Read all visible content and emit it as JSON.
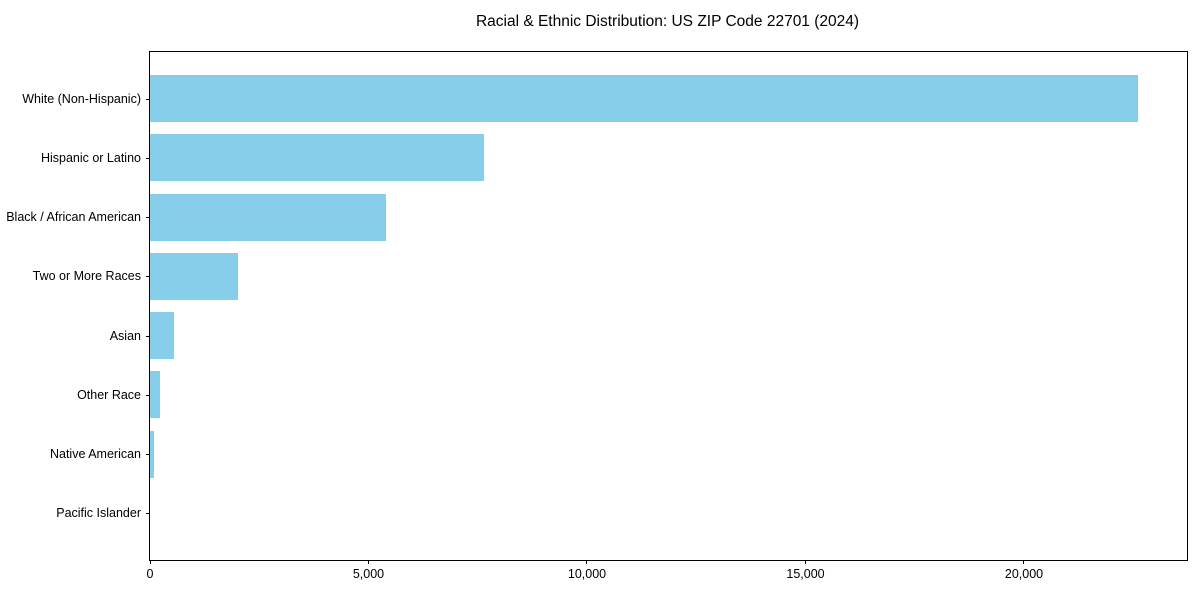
{
  "window": {
    "background": "#ffffff"
  },
  "chart_data": {
    "type": "bar",
    "orientation": "horizontal",
    "title": "Racial & Ethnic Distribution: US ZIP Code 22701 (2024)",
    "categories": [
      "White (Non-Hispanic)",
      "Hispanic or Latino",
      "Black / African American",
      "Two or More Races",
      "Asian",
      "Other Race",
      "Native American",
      "Pacific Islander"
    ],
    "values": [
      22620,
      7650,
      5390,
      2020,
      550,
      240,
      85,
      0
    ],
    "xlabel": "",
    "ylabel": "",
    "xlim": [
      0,
      23730
    ],
    "xticks": [
      0,
      5000,
      10000,
      15000,
      20000
    ],
    "xtick_labels": [
      "0",
      "5,000",
      "10,000",
      "15,000",
      "20,000"
    ],
    "bar_color": "#87CEEB",
    "spine_color": "#000000",
    "grid": false,
    "legend": null
  }
}
